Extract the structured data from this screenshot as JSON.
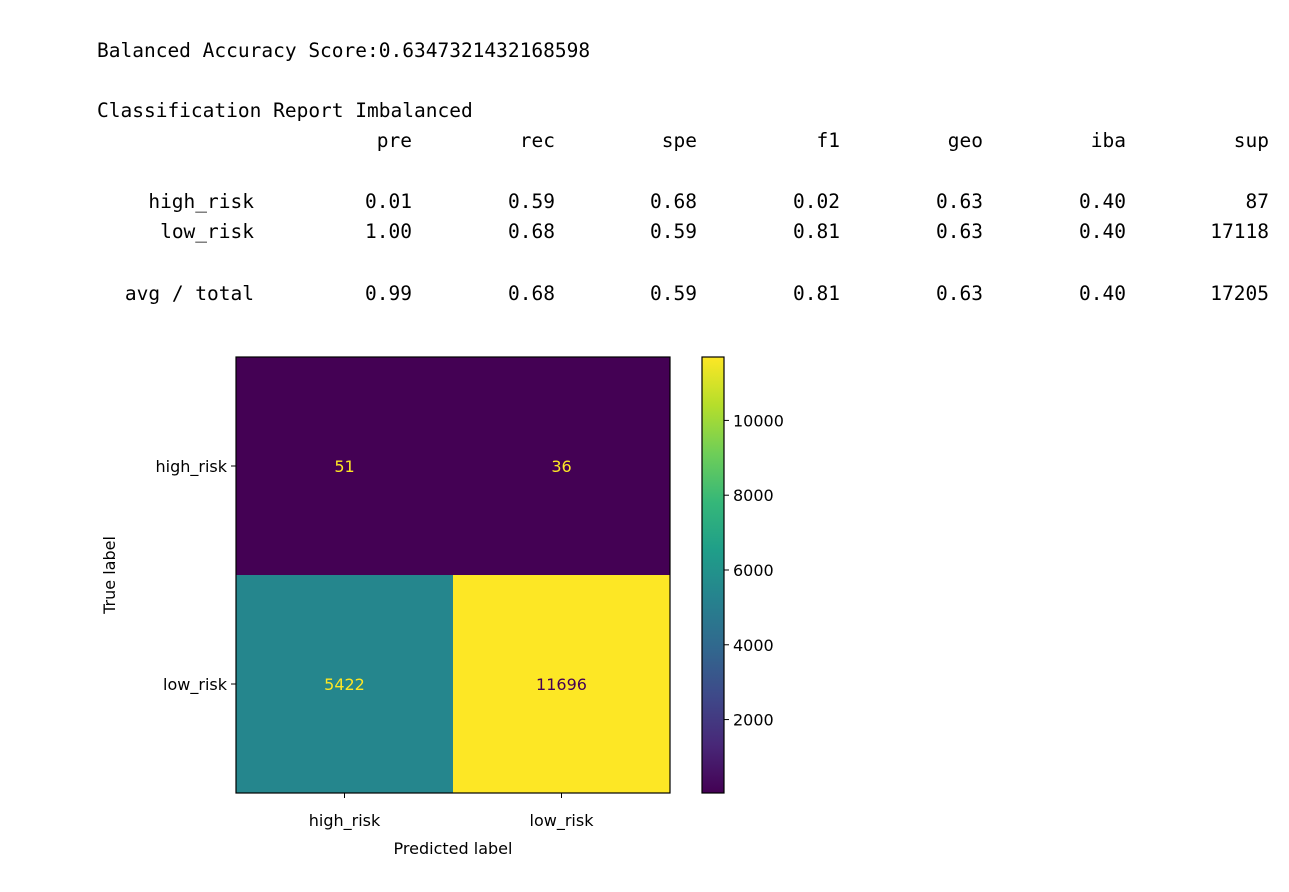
{
  "output": {
    "score_label": "Balanced Accuracy Score:",
    "score_value": "0.6347321432168598",
    "report_title": "Classification Report Imbalanced",
    "report_headers": [
      "pre",
      "rec",
      "spe",
      "f1",
      "geo",
      "iba",
      "sup"
    ],
    "report_rows": [
      {
        "label": "high_risk",
        "values": [
          "0.01",
          "0.59",
          "0.68",
          "0.02",
          "0.63",
          "0.40",
          "87"
        ]
      },
      {
        "label": "low_risk",
        "values": [
          "1.00",
          "0.68",
          "0.59",
          "0.81",
          "0.63",
          "0.40",
          "17118"
        ]
      },
      {
        "label": "avg / total",
        "values": [
          "0.99",
          "0.68",
          "0.59",
          "0.81",
          "0.63",
          "0.40",
          "17205"
        ]
      }
    ]
  },
  "chart_data": {
    "type": "heatmap",
    "title": "",
    "xlabel": "Predicted label",
    "ylabel": "True label",
    "x_categories": [
      "high_risk",
      "low_risk"
    ],
    "y_categories": [
      "high_risk",
      "low_risk"
    ],
    "matrix": [
      [
        51,
        36
      ],
      [
        5422,
        11696
      ]
    ],
    "colormap": "viridis",
    "colorbar": {
      "ticks": [
        2000,
        4000,
        6000,
        8000,
        10000
      ],
      "range": [
        36,
        11696
      ]
    },
    "text_colors": {
      "on_dark": "#fde725",
      "on_light": "#440154"
    }
  }
}
